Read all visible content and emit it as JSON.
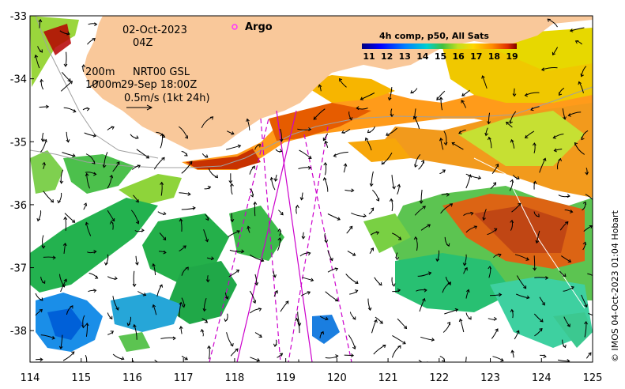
{
  "map": {
    "date": "02-Oct-2023",
    "hour": "04Z",
    "argo_label": "Argo",
    "contour_1": "200m",
    "contour_2": "1000m",
    "current_source": "NRT00 GSL",
    "current_time": "29-Sep 18:00Z",
    "scale_label": "0.5m/s (1kt 24h)",
    "credit": "© IMOS 04-Oct-2023 01:04 Hobart",
    "extent": {
      "lon": [
        114,
        125
      ],
      "lat": [
        -38.5,
        -33
      ]
    }
  },
  "colorbar": {
    "title": "4h comp, p50, All Sats",
    "ticks": [
      "11",
      "12",
      "13",
      "14",
      "15",
      "16",
      "17",
      "18",
      "19"
    ]
  },
  "axes": {
    "x_ticks": [
      "114",
      "115",
      "116",
      "117",
      "118",
      "119",
      "120",
      "121",
      "122",
      "123",
      "124",
      "125"
    ],
    "y_ticks": [
      "-33",
      "-34",
      "-35",
      "-36",
      "-37",
      "-38"
    ]
  },
  "colors": {
    "land": "#f9c89a",
    "satellite_track": "#cc00cc",
    "argo_marker": "#ff33ff"
  }
}
